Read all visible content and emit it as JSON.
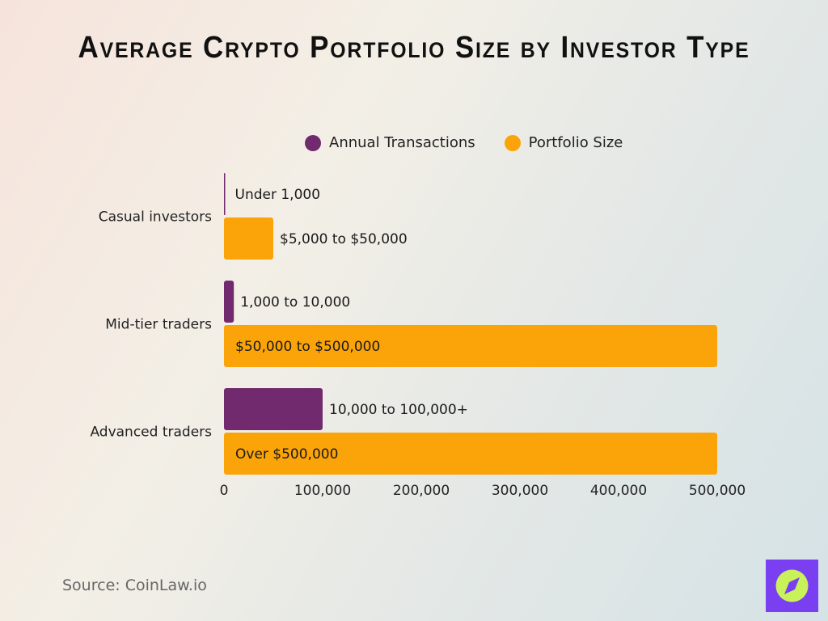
{
  "chart_data": {
    "type": "bar",
    "orientation": "horizontal",
    "title": "Average Crypto Portfolio Size by Investor Type",
    "categories": [
      "Casual investors",
      "Mid-tier traders",
      "Advanced traders"
    ],
    "series": [
      {
        "name": "Annual Transactions",
        "color": "#722a6e",
        "values": [
          1000,
          10000,
          100000
        ],
        "labels": [
          "Under 1,000",
          "1,000 to 10,000",
          "10,000 to 100,000+"
        ]
      },
      {
        "name": "Portfolio Size",
        "color": "#fba40a",
        "values": [
          50000,
          500000,
          500000
        ],
        "labels": [
          "$5,000 to $50,000",
          "$50,000 to $500,000",
          "Over $500,000"
        ]
      }
    ],
    "xlim": [
      0,
      500000
    ],
    "xticks": [
      "0",
      "100,000",
      "200,000",
      "300,000",
      "400,000",
      "500,000"
    ],
    "grid": false,
    "legend": "top"
  },
  "source": "Source: CoinLaw.io",
  "logo": {
    "icon": "compass-icon",
    "bg": "#7b3ff2",
    "fg": "#c9f25a"
  }
}
